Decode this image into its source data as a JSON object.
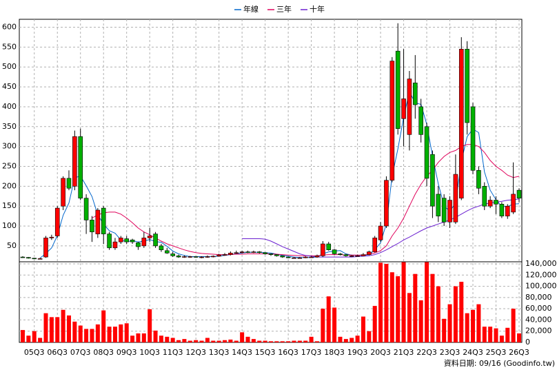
{
  "chart_data": {
    "type": "candlestick",
    "legend": "top",
    "grid": true,
    "up_color": "#ff0000",
    "down_color": "#00b000",
    "categories": [
      null,
      null,
      "05Q3",
      null,
      null,
      null,
      "06Q3",
      null,
      null,
      null,
      "07Q3",
      null,
      null,
      null,
      "08Q3",
      null,
      null,
      null,
      "09Q3",
      null,
      null,
      null,
      "10Q3",
      null,
      null,
      null,
      "11Q3",
      null,
      null,
      null,
      "12Q3",
      null,
      null,
      null,
      "13Q3",
      null,
      null,
      null,
      "14Q3",
      null,
      null,
      null,
      "15Q3",
      null,
      null,
      null,
      "16Q3",
      null,
      null,
      null,
      "17Q3",
      null,
      null,
      null,
      "18Q3",
      null,
      null,
      null,
      "19Q3",
      null,
      null,
      null,
      "20Q3",
      null,
      null,
      null,
      "21Q3",
      null,
      null,
      null,
      "22Q3",
      null,
      null,
      null,
      "23Q3",
      null,
      null,
      null,
      "24Q3",
      null,
      null,
      null,
      "25Q3",
      null,
      null,
      null,
      "26Q3"
    ],
    "open": [
      22,
      21,
      19,
      18,
      22,
      70,
      75,
      150,
      220,
      200,
      325,
      170,
      115,
      80,
      145,
      80,
      45,
      60,
      68,
      65,
      58,
      50,
      70,
      80,
      50,
      38,
      30,
      25,
      22,
      23,
      23,
      22,
      22,
      23,
      24,
      27,
      28,
      32,
      33,
      35,
      34,
      35,
      33,
      30,
      28,
      25,
      22,
      20,
      20,
      20,
      22,
      22,
      25,
      55,
      40,
      30,
      28,
      25,
      25,
      25,
      28,
      35,
      65,
      100,
      215,
      540,
      370,
      330,
      460,
      400,
      350,
      280,
      180,
      170,
      110,
      110,
      170,
      545,
      400,
      240,
      200,
      150,
      165,
      155,
      125,
      135,
      190
    ],
    "high": [
      24,
      22,
      20,
      20,
      75,
      78,
      150,
      225,
      240,
      340,
      345,
      180,
      125,
      145,
      150,
      85,
      70,
      75,
      75,
      68,
      60,
      85,
      95,
      85,
      55,
      45,
      35,
      28,
      26,
      25,
      24,
      24,
      26,
      26,
      30,
      32,
      36,
      38,
      38,
      38,
      38,
      37,
      34,
      31,
      29,
      26,
      23,
      22,
      22,
      24,
      24,
      28,
      62,
      60,
      42,
      32,
      30,
      27,
      28,
      32,
      38,
      75,
      110,
      225,
      525,
      610,
      545,
      490,
      530,
      420,
      360,
      290,
      200,
      180,
      175,
      280,
      575,
      565,
      410,
      250,
      210,
      175,
      175,
      160,
      155,
      260,
      195
    ],
    "low": [
      20,
      18,
      17,
      17,
      20,
      65,
      70,
      140,
      190,
      190,
      165,
      80,
      60,
      70,
      55,
      40,
      40,
      55,
      55,
      55,
      40,
      45,
      60,
      45,
      35,
      30,
      22,
      20,
      20,
      20,
      20,
      19,
      20,
      21,
      23,
      25,
      26,
      30,
      31,
      32,
      32,
      31,
      28,
      25,
      23,
      20,
      19,
      18,
      18,
      19,
      20,
      20,
      22,
      38,
      28,
      26,
      23,
      22,
      23,
      24,
      26,
      33,
      60,
      95,
      210,
      330,
      300,
      290,
      370,
      310,
      200,
      120,
      110,
      100,
      95,
      105,
      165,
      330,
      230,
      180,
      140,
      145,
      130,
      120,
      118,
      130,
      160
    ],
    "close": [
      21,
      19,
      18,
      18,
      70,
      72,
      145,
      220,
      195,
      325,
      170,
      115,
      85,
      140,
      80,
      45,
      60,
      70,
      60,
      60,
      48,
      70,
      75,
      50,
      40,
      32,
      25,
      22,
      23,
      23,
      22,
      22,
      23,
      24,
      27,
      28,
      32,
      33,
      35,
      34,
      35,
      33,
      30,
      28,
      25,
      22,
      20,
      20,
      20,
      22,
      22,
      25,
      55,
      40,
      30,
      28,
      25,
      25,
      25,
      28,
      35,
      70,
      100,
      215,
      515,
      345,
      420,
      470,
      405,
      330,
      220,
      150,
      125,
      110,
      165,
      230,
      545,
      360,
      240,
      195,
      150,
      165,
      155,
      125,
      150,
      180,
      170
    ],
    "series": [
      {
        "name": "年線",
        "color": "#0066cc",
        "values": [
          null,
          null,
          null,
          19,
          31,
          45,
          76,
          127,
          158,
          221,
          226,
          201,
          174,
          128,
          105,
          88,
          82,
          65,
          60,
          63,
          60,
          62,
          66,
          61,
          59,
          49,
          37,
          30,
          26,
          23,
          23,
          23,
          23,
          23,
          24,
          26,
          28,
          30,
          32,
          34,
          34,
          34,
          33,
          32,
          29,
          26,
          24,
          22,
          21,
          21,
          21,
          22,
          30,
          35,
          37,
          38,
          30,
          27,
          26,
          26,
          28,
          40,
          58,
          105,
          225,
          294,
          374,
          438,
          410,
          406,
          356,
          276,
          206,
          151,
          137,
          158,
          263,
          325,
          344,
          335,
          236,
          190,
          166,
          149,
          149,
          155,
          156
        ]
      },
      {
        "name": "三年",
        "color": "#e0005a",
        "values": [
          null,
          null,
          null,
          null,
          null,
          null,
          null,
          null,
          null,
          null,
          null,
          null,
          120,
          128,
          133,
          135,
          135,
          130,
          120,
          108,
          95,
          85,
          78,
          70,
          62,
          55,
          50,
          45,
          40,
          36,
          33,
          31,
          30,
          29,
          28,
          28,
          28,
          29,
          29,
          30,
          30,
          30,
          30,
          30,
          29,
          28,
          27,
          26,
          25,
          25,
          25,
          25,
          27,
          28,
          28,
          28,
          27,
          27,
          27,
          27,
          29,
          32,
          38,
          50,
          75,
          95,
          120,
          150,
          180,
          205,
          225,
          240,
          260,
          275,
          285,
          290,
          300,
          305,
          305,
          300,
          285,
          265,
          250,
          240,
          228,
          222,
          225
        ]
      },
      {
        "name": "十年",
        "color": "#6a1fd0",
        "values": [
          null,
          null,
          null,
          null,
          null,
          null,
          null,
          null,
          null,
          null,
          null,
          null,
          null,
          null,
          null,
          null,
          null,
          null,
          null,
          null,
          null,
          null,
          null,
          null,
          null,
          null,
          null,
          null,
          null,
          null,
          null,
          null,
          null,
          null,
          null,
          null,
          null,
          null,
          68,
          68,
          68,
          68,
          67,
          62,
          55,
          48,
          42,
          36,
          30,
          26,
          24,
          22,
          22,
          22,
          22,
          22,
          22,
          22,
          23,
          24,
          25,
          28,
          33,
          40,
          48,
          56,
          65,
          72,
          80,
          88,
          95,
          100,
          105,
          110,
          115,
          122,
          130,
          138,
          145,
          150,
          155,
          158,
          160,
          162,
          165,
          166,
          168
        ]
      }
    ],
    "ylim": [
      10,
      620
    ],
    "yticks": [
      50,
      100,
      150,
      200,
      250,
      300,
      350,
      400,
      450,
      500,
      550,
      600
    ],
    "volume": {
      "color": "#ff0000",
      "values": [
        22000,
        12000,
        20000,
        8000,
        52000,
        45000,
        45000,
        58000,
        48000,
        37000,
        30000,
        24000,
        24000,
        32000,
        57000,
        28000,
        28000,
        32000,
        34000,
        12000,
        16000,
        16000,
        59000,
        21000,
        12000,
        10000,
        8000,
        4000,
        6000,
        3000,
        4000,
        3000,
        8000,
        3000,
        3000,
        4000,
        5000,
        3000,
        18000,
        10000,
        6000,
        3000,
        3000,
        2000,
        2000,
        2000,
        2000,
        3000,
        3000,
        3000,
        10000,
        2000,
        60000,
        82000,
        62000,
        10000,
        6000,
        8000,
        12000,
        46000,
        20000,
        65000,
        142000,
        140000,
        125000,
        118000,
        143000,
        88000,
        122000,
        75000,
        143000,
        122000,
        100000,
        42000,
        68000,
        100000,
        108000,
        52000,
        58000,
        68000,
        28000,
        28000,
        25000,
        12000,
        26000,
        60000,
        16000
      ]
    },
    "y2lim": [
      0,
      143700
    ],
    "y2ticks": [
      0,
      {
        "value": 20000,
        "label": "20,000"
      },
      {
        "value": 40000,
        "label": "40,000"
      },
      {
        "value": 60000,
        "label": "60,000"
      },
      {
        "value": 80000,
        "label": "80,000"
      },
      {
        "value": 100000,
        "label": "100,000"
      },
      {
        "value": 120000,
        "label": "120,000"
      },
      {
        "value": 140000,
        "label": "140,000"
      }
    ],
    "source": "資料日期: 09/16 (Goodinfo.tw)"
  }
}
